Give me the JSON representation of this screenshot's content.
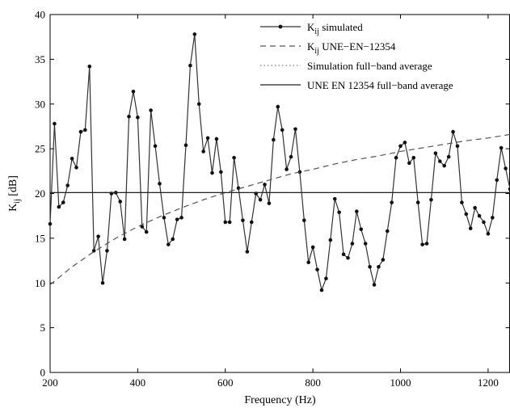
{
  "chart_data": {
    "type": "line",
    "xlabel": "Frequency (Hz)",
    "ylabel_main": "K",
    "ylabel_sub": "ij",
    "ylabel_unit": " [dB]",
    "xlim": [
      200,
      1250
    ],
    "ylim": [
      0,
      40
    ],
    "xticks": [
      200,
      400,
      600,
      800,
      1000,
      1200
    ],
    "yticks": [
      0,
      5,
      10,
      15,
      20,
      25,
      30,
      35,
      40
    ],
    "grid": false,
    "legend_position": "top-right",
    "legend": [
      {
        "main": "K",
        "sub": "ij",
        "rest": " simulated",
        "style": "solid-marker",
        "color": "#333333"
      },
      {
        "main": "K",
        "sub": "ij",
        "rest": " UNE−EN−12354",
        "style": "dashed",
        "color": "#555555"
      },
      {
        "main": "",
        "sub": "",
        "rest": "Simulation full−band average",
        "style": "dotted",
        "color": "#777777"
      },
      {
        "main": "",
        "sub": "",
        "rest": "UNE EN 12354 full−band average",
        "style": "solid",
        "color": "#222222"
      }
    ],
    "series": [
      {
        "name": "Kij simulated",
        "style": "solid-marker",
        "x": [
          200,
          210,
          220,
          230,
          240,
          250,
          260,
          270,
          280,
          290,
          300,
          310,
          320,
          330,
          340,
          350,
          360,
          370,
          380,
          390,
          400,
          410,
          420,
          430,
          440,
          450,
          460,
          470,
          480,
          490,
          500,
          510,
          520,
          530,
          540,
          550,
          560,
          570,
          580,
          590,
          600,
          610,
          620,
          630,
          640,
          650,
          660,
          670,
          680,
          690,
          700,
          710,
          720,
          730,
          740,
          750,
          760,
          770,
          780,
          790,
          800,
          810,
          820,
          830,
          840,
          850,
          860,
          870,
          880,
          890,
          900,
          910,
          920,
          930,
          940,
          950,
          960,
          970,
          980,
          990,
          1000,
          1010,
          1020,
          1030,
          1040,
          1050,
          1060,
          1070,
          1080,
          1090,
          1100,
          1110,
          1120,
          1130,
          1140,
          1150,
          1160,
          1170,
          1180,
          1190,
          1200,
          1210,
          1220,
          1230,
          1240,
          1250
        ],
        "y": [
          16.6,
          27.8,
          18.5,
          19.0,
          20.9,
          23.9,
          22.9,
          26.9,
          27.1,
          34.2,
          13.6,
          15.2,
          10.0,
          13.6,
          20.0,
          20.1,
          19.1,
          14.9,
          28.6,
          31.4,
          28.5,
          16.3,
          15.7,
          29.3,
          25.3,
          21.1,
          17.3,
          14.3,
          14.9,
          17.1,
          17.3,
          25.4,
          34.3,
          37.8,
          30.0,
          24.7,
          26.2,
          22.3,
          26.1,
          22.4,
          16.8,
          16.8,
          24.0,
          20.6,
          17.0,
          13.5,
          16.8,
          20.0,
          19.3,
          21.0,
          18.9,
          26.0,
          29.7,
          27.1,
          22.7,
          24.1,
          27.2,
          22.4,
          17.0,
          12.3,
          14.0,
          11.5,
          9.2,
          10.5,
          14.8,
          19.4,
          17.9,
          13.2,
          12.8,
          14.4,
          18.0,
          16.0,
          14.4,
          11.8,
          9.8,
          11.8,
          12.6,
          15.8,
          19.0,
          24.0,
          25.3,
          25.7,
          23.4,
          24.0,
          19.0,
          14.3,
          14.4,
          19.3,
          24.5,
          23.6,
          23.1,
          24.1,
          26.9,
          25.3,
          19.0,
          17.7,
          16.1,
          18.4,
          17.5,
          16.8,
          15.5,
          17.3,
          21.5,
          25.1,
          22.8,
          20.5
        ]
      },
      {
        "name": "Kij UNE-EN-12354",
        "style": "dashed",
        "x": [
          200,
          250,
          300,
          350,
          400,
          450,
          500,
          550,
          600,
          650,
          700,
          750,
          800,
          850,
          900,
          950,
          1000,
          1050,
          1100,
          1150,
          1200,
          1250
        ],
        "y": [
          9.8,
          11.8,
          13.5,
          15.0,
          16.3,
          17.4,
          18.4,
          19.3,
          20.1,
          20.8,
          21.5,
          22.2,
          22.7,
          23.3,
          23.8,
          24.2,
          24.7,
          25.1,
          25.5,
          25.9,
          26.2,
          26.6
        ]
      },
      {
        "name": "Simulation full-band average",
        "style": "dotted",
        "constant": 20.1
      },
      {
        "name": "UNE EN 12354 full-band average",
        "style": "solid",
        "constant": 20.1
      }
    ]
  }
}
